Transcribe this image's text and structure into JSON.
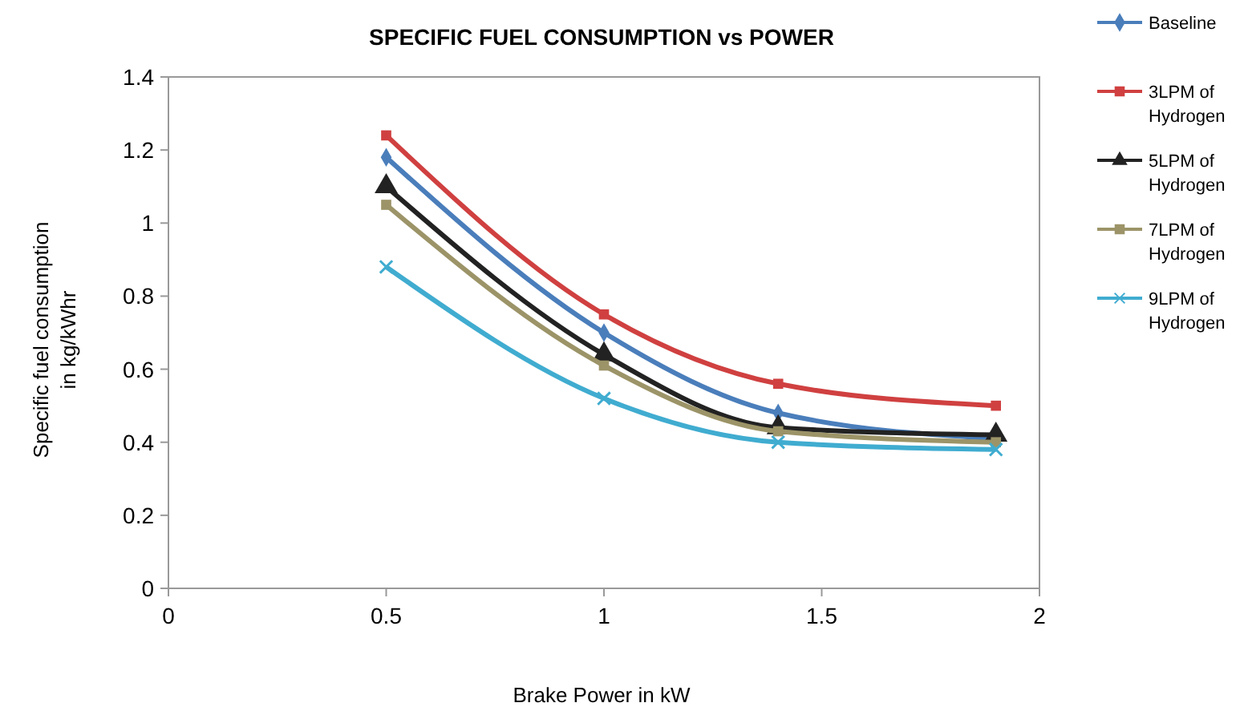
{
  "chart_data": {
    "type": "line",
    "title": "SPECIFIC FUEL CONSUMPTION vs POWER",
    "xlabel": "Brake Power in kW",
    "ylabel": "Specific fuel consumption in kg/kWhr",
    "x": [
      0.5,
      1,
      1.4,
      1.9
    ],
    "xlim": [
      0,
      2
    ],
    "xticks": [
      0,
      0.5,
      1,
      1.5,
      2
    ],
    "ylim": [
      0,
      1.4
    ],
    "yticks": [
      0,
      0.2,
      0.4,
      0.6,
      0.8,
      1,
      1.2,
      1.4
    ],
    "grid": false,
    "legend": "right",
    "line_style": "solid",
    "series": [
      {
        "name": "Baseline",
        "color": "#4a7ebb",
        "marker": "diamond",
        "values": [
          1.18,
          0.7,
          0.48,
          0.41
        ]
      },
      {
        "name": "3LPM of Hydrogen",
        "color": "#d04040",
        "marker": "square",
        "values": [
          1.24,
          0.75,
          0.56,
          0.5
        ]
      },
      {
        "name": "5LPM of Hydrogen",
        "color": "#222222",
        "marker": "triangle",
        "values": [
          1.1,
          0.64,
          0.44,
          0.42
        ]
      },
      {
        "name": "7LPM of Hydrogen",
        "color": "#9c9468",
        "marker": "square",
        "values": [
          1.05,
          0.61,
          0.43,
          0.4
        ]
      },
      {
        "name": "9LPM of Hydrogen",
        "color": "#40acd0",
        "marker": "cross",
        "values": [
          0.88,
          0.52,
          0.4,
          0.38
        ]
      }
    ]
  }
}
